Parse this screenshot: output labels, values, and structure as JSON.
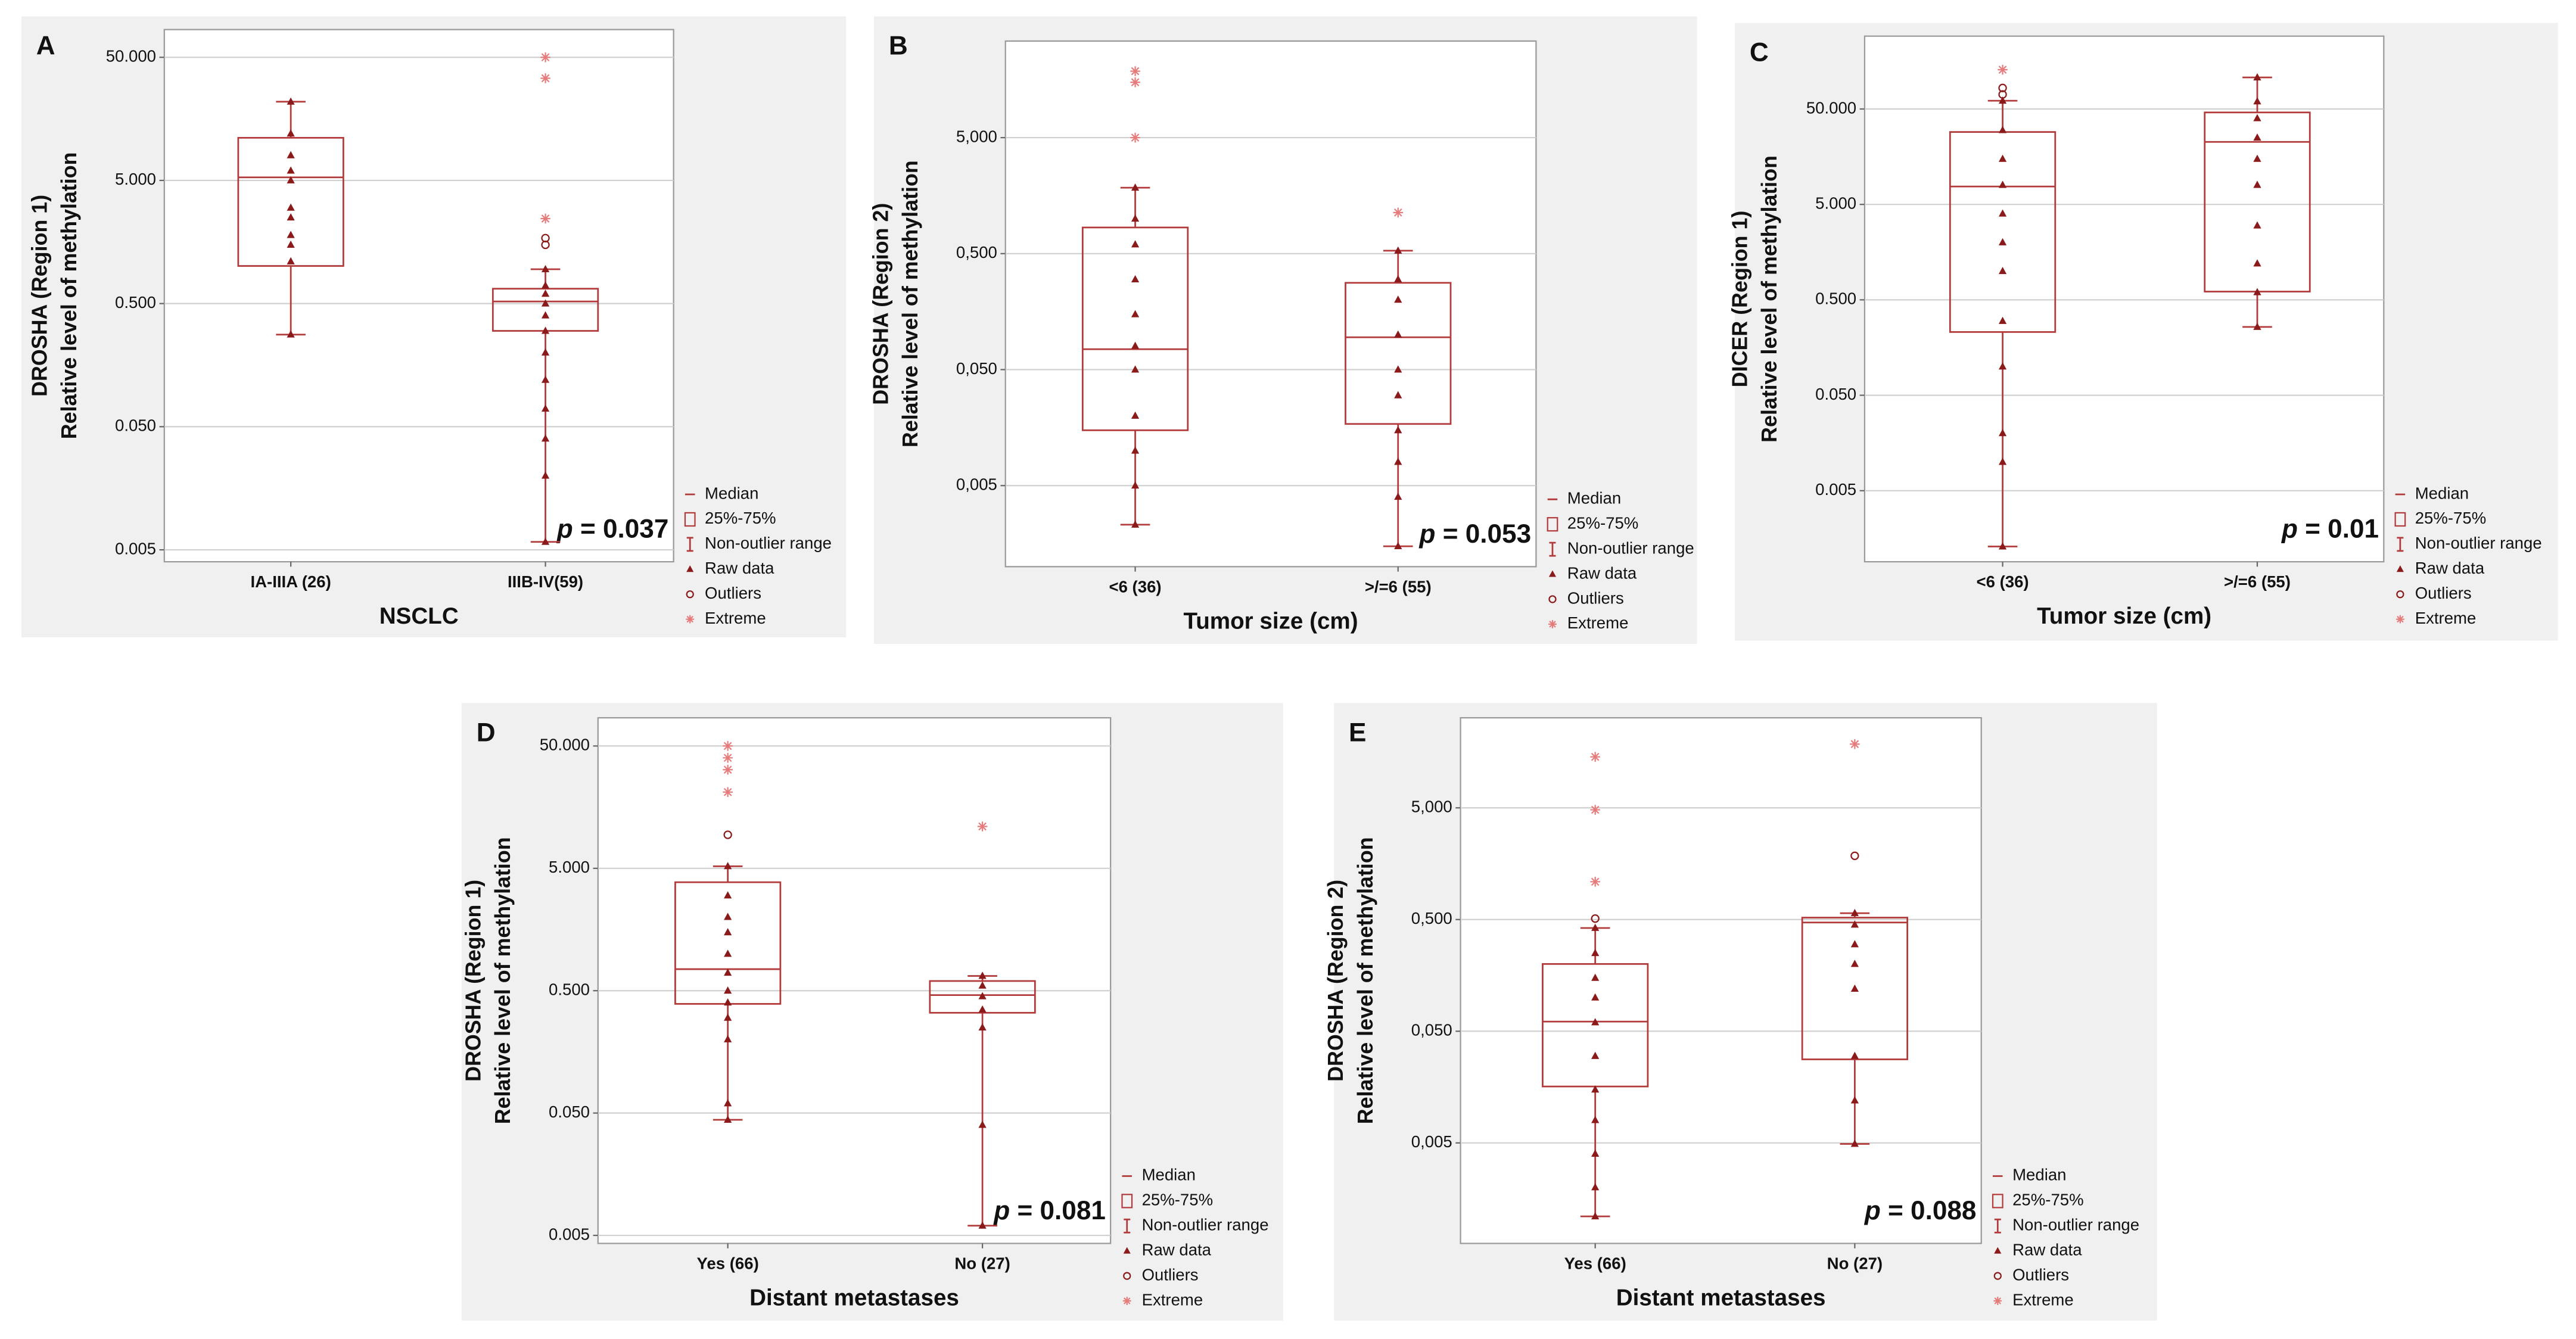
{
  "chart_data": [
    {
      "type": "box",
      "panel": "A",
      "ylabel": [
        "DROSHA (Region 1)",
        "Relative level of methylation"
      ],
      "xlabel": "NSCLC",
      "annotation": "p = 0.037",
      "log": true,
      "grid": true,
      "color": "#8b1a1a",
      "legend": [
        "Median",
        "25%-75%",
        "Non-outlier range",
        "Raw data",
        "Outliers",
        "Extreme"
      ],
      "categories": [
        "IA-IIIA (26)",
        "IIIB-IV(59)"
      ],
      "ylim": [
        0.004,
        84
      ],
      "yticks": [
        {
          "value": 50,
          "label": "50.000"
        },
        {
          "value": 5,
          "label": "5.000"
        },
        {
          "value": 0.5,
          "label": "0.500"
        },
        {
          "value": 0.05,
          "label": "0.050"
        },
        {
          "value": 0.005,
          "label": "0.005"
        }
      ],
      "boxes": [
        {
          "whisker_low": 0.28,
          "q1": 1.01,
          "median": 5.3,
          "q3": 11.1,
          "whisker_high": 21.8,
          "outliers": [],
          "extremes": [],
          "raw": [
            21.8,
            12,
            8,
            6,
            5,
            3,
            2.5,
            1.8,
            1.5,
            1.1,
            0.28
          ]
        },
        {
          "whisker_low": 0.0058,
          "q1": 0.3,
          "median": 0.52,
          "q3": 0.66,
          "whisker_high": 0.95,
          "outliers": [
            1.7,
            1.5
          ],
          "extremes": [
            50,
            33.8,
            2.45
          ],
          "raw": [
            0.95,
            0.7,
            0.6,
            0.5,
            0.4,
            0.3,
            0.2,
            0.12,
            0.07,
            0.04,
            0.02,
            0.0058
          ]
        }
      ]
    },
    {
      "type": "box",
      "panel": "B",
      "ylabel": [
        "DROSHA (Region 2)",
        "Relative level of methylation"
      ],
      "xlabel": "Tumor size (cm)",
      "annotation": "p = 0.053",
      "log": true,
      "grid": true,
      "color": "#8b1a1a",
      "legend": [
        "Median",
        "25%-75%",
        "Non-outlier range",
        "Raw data",
        "Outliers",
        "Extreme"
      ],
      "categories": [
        "<6 (36)",
        ">/=6 (55)"
      ],
      "ylim": [
        0.001,
        34
      ],
      "yticks": [
        {
          "value": 5,
          "label": "5,000"
        },
        {
          "value": 0.5,
          "label": "0,500"
        },
        {
          "value": 0.05,
          "label": "0,050"
        },
        {
          "value": 0.005,
          "label": "0,005"
        }
      ],
      "boxes": [
        {
          "whisker_low": 0.0023,
          "q1": 0.015,
          "median": 0.075,
          "q3": 0.84,
          "whisker_high": 1.85,
          "outliers": [],
          "extremes": [
            18.7,
            15,
            5
          ],
          "raw": [
            1.85,
            1.0,
            0.6,
            0.3,
            0.15,
            0.08,
            0.05,
            0.02,
            0.01,
            0.005,
            0.0023
          ]
        },
        {
          "whisker_low": 0.0015,
          "q1": 0.017,
          "median": 0.095,
          "q3": 0.28,
          "whisker_high": 0.53,
          "outliers": [],
          "extremes": [
            1.13
          ],
          "raw": [
            0.53,
            0.3,
            0.2,
            0.1,
            0.05,
            0.03,
            0.015,
            0.008,
            0.004,
            0.0015
          ]
        }
      ]
    },
    {
      "type": "box",
      "panel": "C",
      "ylabel": [
        "DICER (Region 1)",
        "Relative level of methylation"
      ],
      "xlabel": "Tumor size (cm)",
      "annotation": "p = 0.01",
      "log": true,
      "grid": true,
      "color": "#8b1a1a",
      "legend": [
        "Median",
        "25%-75%",
        "Non-outlier range",
        "Raw data",
        "Outliers",
        "Extreme"
      ],
      "categories": [
        "<6 (36)",
        ">/=6 (55)"
      ],
      "ylim": [
        0.0009,
        290
      ],
      "yticks": [
        {
          "value": 50,
          "label": "50.000"
        },
        {
          "value": 5,
          "label": "5.000"
        },
        {
          "value": 0.5,
          "label": "0.500"
        },
        {
          "value": 0.05,
          "label": "0.050"
        },
        {
          "value": 0.005,
          "label": "0.005"
        }
      ],
      "boxes": [
        {
          "whisker_low": 0.0013,
          "q1": 0.23,
          "median": 7.7,
          "q3": 28.7,
          "whisker_high": 61,
          "outliers": [
            83,
            71
          ],
          "extremes": [
            129
          ],
          "raw": [
            61,
            30,
            15,
            8,
            4,
            2,
            1,
            0.3,
            0.1,
            0.02,
            0.01,
            0.0013
          ]
        },
        {
          "whisker_low": 0.26,
          "q1": 0.61,
          "median": 22.6,
          "q3": 46,
          "whisker_high": 107,
          "outliers": [],
          "extremes": [],
          "raw": [
            107,
            60,
            40,
            25,
            15,
            8,
            3,
            1.2,
            0.6,
            0.26
          ]
        }
      ]
    },
    {
      "type": "box",
      "panel": "D",
      "ylabel": [
        "DROSHA (Region 1)",
        "Relative level of methylation"
      ],
      "xlabel": "Distant metastases",
      "annotation": "p = 0.081",
      "log": true,
      "grid": true,
      "color": "#8b1a1a",
      "legend": [
        "Median",
        "25%-75%",
        "Non-outlier range",
        "Raw data",
        "Outliers",
        "Extreme"
      ],
      "categories": [
        "Yes (66)",
        "No (27)"
      ],
      "ylim": [
        0.0043,
        85
      ],
      "yticks": [
        {
          "value": 50,
          "label": "50.000"
        },
        {
          "value": 5,
          "label": "5.000"
        },
        {
          "value": 0.5,
          "label": "0.500"
        },
        {
          "value": 0.05,
          "label": "0.050"
        },
        {
          "value": 0.005,
          "label": "0.005"
        }
      ],
      "boxes": [
        {
          "whisker_low": 0.044,
          "q1": 0.39,
          "median": 0.75,
          "q3": 3.85,
          "whisker_high": 5.2,
          "outliers": [
            9.4
          ],
          "extremes": [
            50,
            40,
            32,
            21
          ],
          "raw": [
            5.2,
            3,
            2,
            1.5,
            1,
            0.7,
            0.5,
            0.4,
            0.3,
            0.2,
            0.06,
            0.044
          ]
        },
        {
          "whisker_low": 0.006,
          "q1": 0.33,
          "median": 0.46,
          "q3": 0.6,
          "whisker_high": 0.66,
          "outliers": [],
          "extremes": [
            11
          ],
          "raw": [
            0.66,
            0.55,
            0.45,
            0.35,
            0.25,
            0.04,
            0.006
          ]
        }
      ]
    },
    {
      "type": "box",
      "panel": "E",
      "ylabel": [
        "DROSHA (Region 2)",
        "Relative level of methylation"
      ],
      "xlabel": "Distant metastases",
      "annotation": "p = 0.088",
      "log": true,
      "grid": true,
      "color": "#8b1a1a",
      "legend": [
        "Median",
        "25%-75%",
        "Non-outlier range",
        "Raw data",
        "Outliers",
        "Extreme"
      ],
      "categories": [
        "Yes (66)",
        "No (27)"
      ],
      "ylim": [
        0.00063,
        32
      ],
      "yticks": [
        {
          "value": 5,
          "label": "5,000"
        },
        {
          "value": 0.5,
          "label": "0,500"
        },
        {
          "value": 0.05,
          "label": "0,050"
        },
        {
          "value": 0.005,
          "label": "0,005"
        }
      ],
      "boxes": [
        {
          "whisker_low": 0.0011,
          "q1": 0.016,
          "median": 0.061,
          "q3": 0.2,
          "whisker_high": 0.42,
          "outliers": [
            0.51
          ],
          "extremes": [
            14.3,
            4.8,
            1.09
          ],
          "raw": [
            0.42,
            0.25,
            0.15,
            0.1,
            0.06,
            0.03,
            0.015,
            0.008,
            0.004,
            0.002,
            0.0011
          ]
        },
        {
          "whisker_low": 0.0049,
          "q1": 0.028,
          "median": 0.47,
          "q3": 0.52,
          "whisker_high": 0.57,
          "outliers": [
            1.86
          ],
          "extremes": [
            18.6
          ],
          "raw": [
            0.57,
            0.45,
            0.3,
            0.2,
            0.12,
            0.03,
            0.012,
            0.0049
          ]
        }
      ]
    }
  ]
}
